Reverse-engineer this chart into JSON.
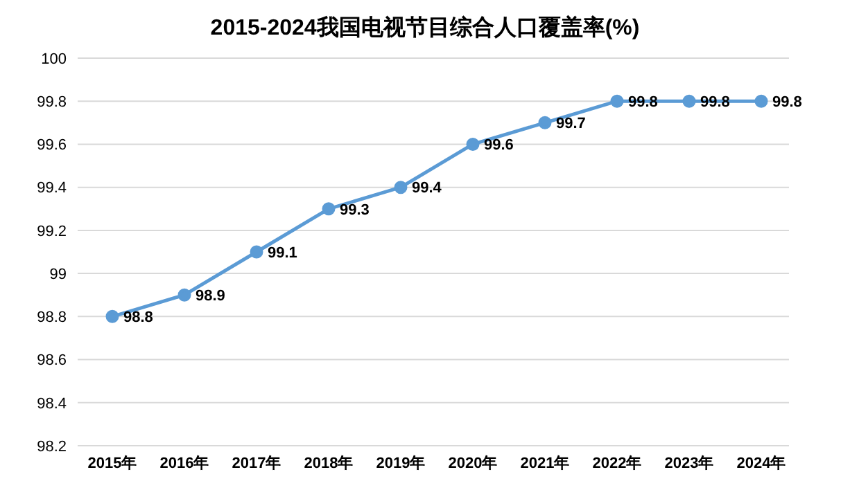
{
  "chart_data": {
    "type": "line",
    "title": "2015-2024我国电视节目综合人口覆盖率(%)",
    "categories": [
      "2015年",
      "2016年",
      "2017年",
      "2018年",
      "2019年",
      "2020年",
      "2021年",
      "2022年",
      "2023年",
      "2024年"
    ],
    "series": [
      {
        "color": "#5b9bd5",
        "values": [
          98.8,
          98.9,
          99.1,
          99.3,
          99.4,
          99.6,
          99.7,
          99.8,
          99.8,
          99.8
        ]
      }
    ],
    "ylim": [
      98.2,
      100
    ],
    "yticks": [
      98.2,
      98.4,
      98.6,
      98.8,
      99,
      99.2,
      99.4,
      99.6,
      99.8,
      100
    ],
    "grid": "y",
    "marker": "circle",
    "line_style": "solid",
    "data_labels": true,
    "legend": false
  }
}
